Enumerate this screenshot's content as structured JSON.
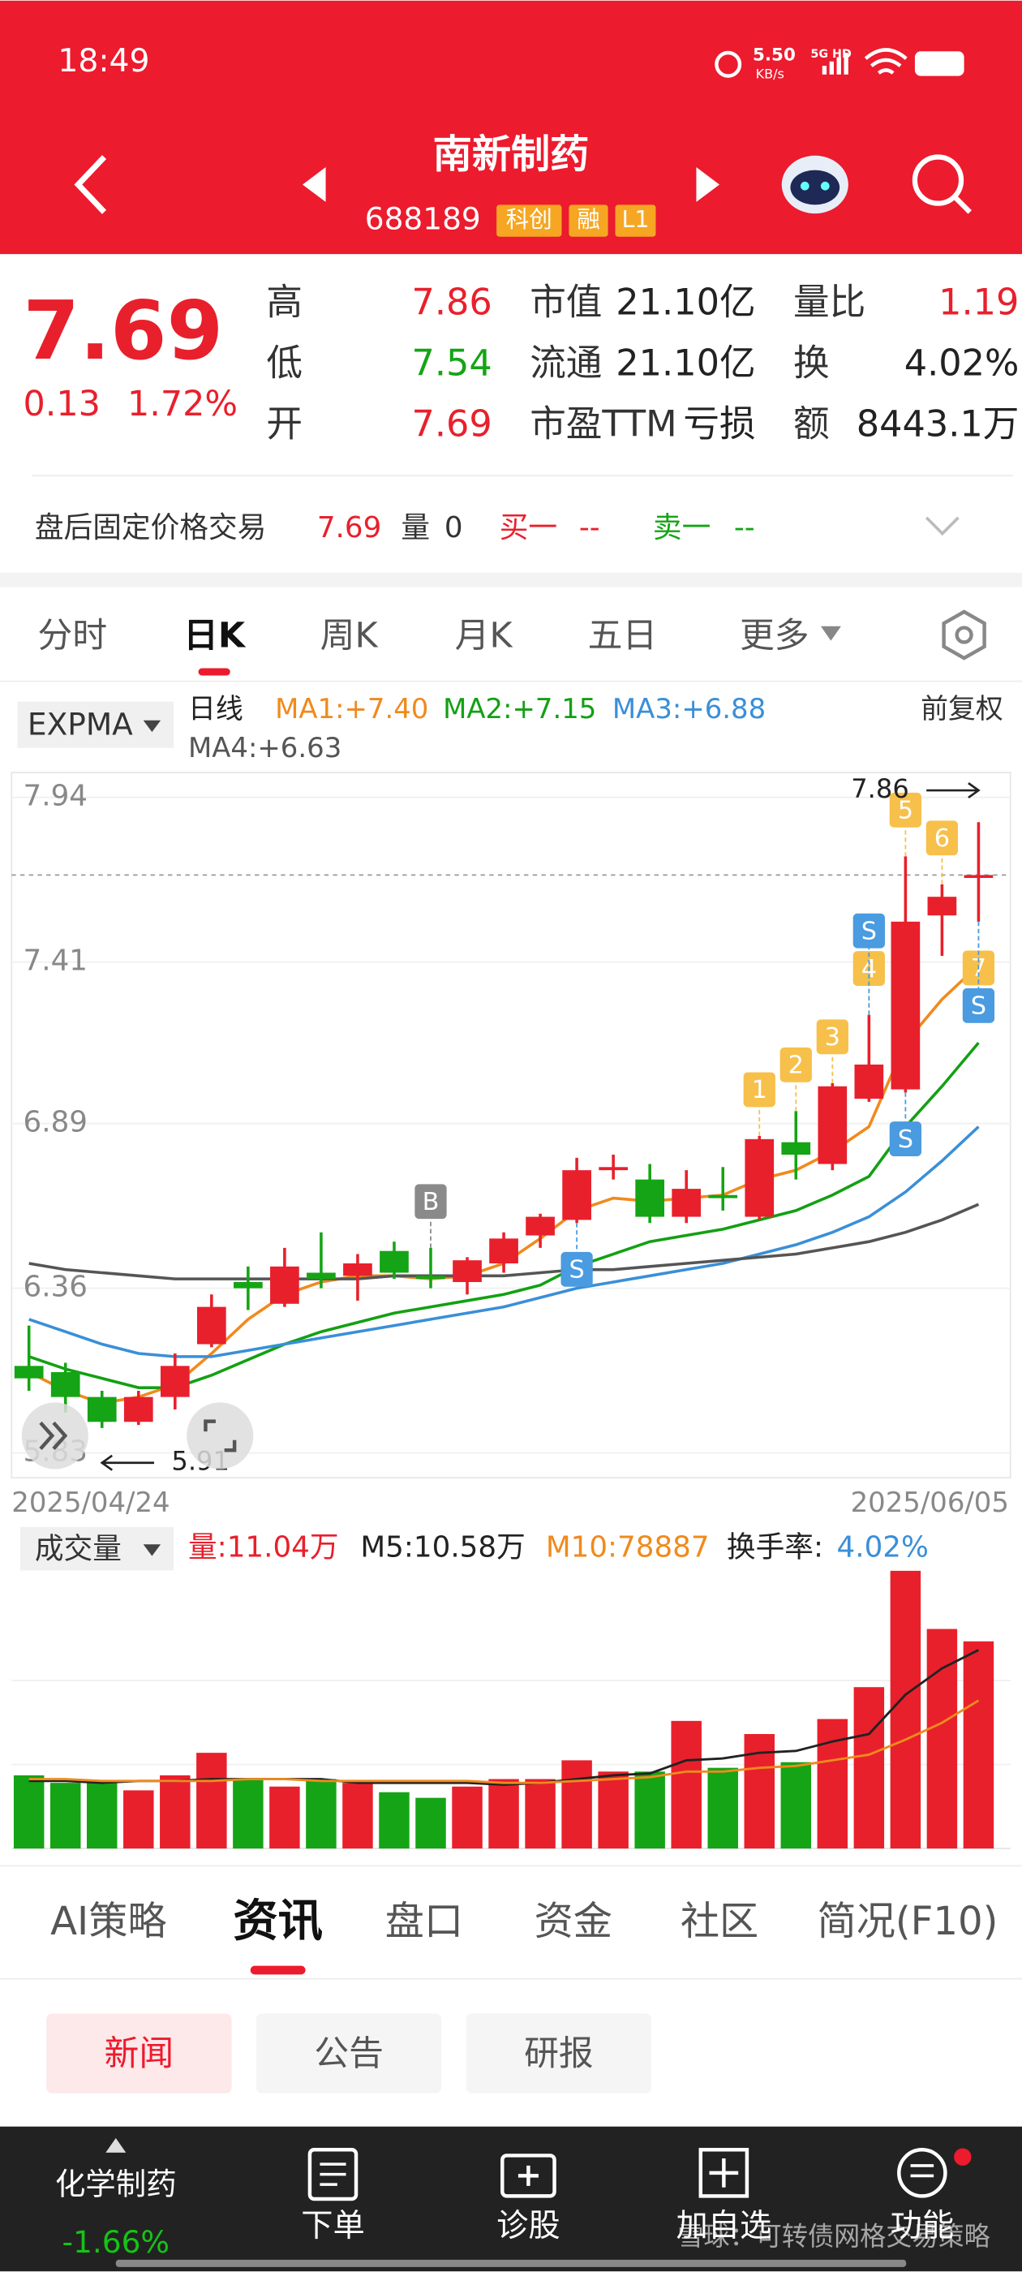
{
  "status_bar": {
    "time": "18:49",
    "speed": "5.50",
    "speed_unit": "KB/s",
    "network": "5G HD"
  },
  "header": {
    "name": "南新制药",
    "code": "688189",
    "tags": [
      "科创",
      "融",
      "L1"
    ]
  },
  "quote": {
    "price": "7.69",
    "change": "0.13",
    "change_pct": "1.72%",
    "stats": [
      {
        "label": "高",
        "value": "7.86",
        "color": "#e8202c"
      },
      {
        "label": "市值",
        "value": "21.10亿",
        "color": "#222222"
      },
      {
        "label": "量比",
        "value": "1.19",
        "color": "#e8202c"
      },
      {
        "label": "低",
        "value": "7.54",
        "color": "#15a415"
      },
      {
        "label": "流通",
        "value": "21.10亿",
        "color": "#222222"
      },
      {
        "label": "换",
        "value": "4.02%",
        "color": "#222222"
      },
      {
        "label": "开",
        "value": "7.69",
        "color": "#e8202c"
      },
      {
        "label": "市盈TTM",
        "value": "亏损",
        "color": "#222222"
      },
      {
        "label": "额",
        "value": "8443.1万",
        "color": "#222222"
      }
    ]
  },
  "after_hours": {
    "label": "盘后固定价格交易",
    "price": "7.69",
    "volume_label": "量",
    "volume": "0",
    "bid_label": "买一",
    "bid": "--",
    "ask_label": "卖一",
    "ask": "--"
  },
  "period_tabs": {
    "items": [
      "分时",
      "日K",
      "周K",
      "月K",
      "五日",
      "更多"
    ],
    "active": 1
  },
  "kline": {
    "indicator": "EXPMA",
    "period_label": "日线",
    "adjust": "前复权",
    "up_color": "#e8202c",
    "down_color": "#15a415",
    "ylim": [
      5.75,
      8.02
    ],
    "yticks": [
      7.94,
      7.41,
      6.89,
      6.36,
      5.83
    ],
    "x_start": "2025/04/24",
    "x_end": "2025/06/05",
    "last_close": 7.69,
    "high_mark": 7.86,
    "low_mark": 5.91,
    "open": [
      6.11,
      6.09,
      6.01,
      5.93,
      6.01,
      6.18,
      6.38,
      6.31,
      6.41,
      6.4,
      6.48,
      6.4,
      6.38,
      6.44,
      6.53,
      6.58,
      6.74,
      6.71,
      6.59,
      6.66,
      6.59,
      6.83,
      6.76,
      6.97,
      7.0,
      7.56,
      7.69
    ],
    "close": [
      6.07,
      6.01,
      5.93,
      6.01,
      6.11,
      6.3,
      6.36,
      6.43,
      6.39,
      6.44,
      6.41,
      6.39,
      6.45,
      6.52,
      6.59,
      6.74,
      6.75,
      6.59,
      6.68,
      6.65,
      6.84,
      6.79,
      7.01,
      7.08,
      7.54,
      7.62,
      7.69
    ],
    "high": [
      6.24,
      6.12,
      6.03,
      6.03,
      6.15,
      6.34,
      6.43,
      6.49,
      6.54,
      6.47,
      6.51,
      6.49,
      6.46,
      6.54,
      6.6,
      6.78,
      6.79,
      6.76,
      6.74,
      6.75,
      6.85,
      6.93,
      7.02,
      7.24,
      7.75,
      7.66,
      7.86
    ],
    "low": [
      6.03,
      5.96,
      5.91,
      5.92,
      5.97,
      6.17,
      6.29,
      6.3,
      6.36,
      6.32,
      6.39,
      6.36,
      6.34,
      6.41,
      6.49,
      6.57,
      6.71,
      6.57,
      6.57,
      6.61,
      6.58,
      6.71,
      6.74,
      6.96,
      6.99,
      7.43,
      7.54
    ],
    "ma": [
      {
        "label": "MA1:+7.40",
        "color": "#f08a1c",
        "values": [
          6.09,
          6.03,
          5.99,
          6.01,
          6.05,
          6.15,
          6.26,
          6.34,
          6.38,
          6.4,
          6.4,
          6.39,
          6.4,
          6.44,
          6.52,
          6.61,
          6.65,
          6.64,
          6.65,
          6.66,
          6.71,
          6.74,
          6.8,
          6.88,
          7.15,
          7.29,
          7.4
        ]
      },
      {
        "label": "MA2:+7.15",
        "color": "#13a013",
        "values": [
          6.14,
          6.1,
          6.07,
          6.04,
          6.04,
          6.08,
          6.13,
          6.18,
          6.22,
          6.25,
          6.28,
          6.3,
          6.32,
          6.34,
          6.37,
          6.43,
          6.47,
          6.51,
          6.53,
          6.55,
          6.58,
          6.61,
          6.66,
          6.72,
          6.88,
          7.01,
          7.15
        ]
      },
      {
        "label": "MA3:+6.88",
        "color": "#3a8fd8",
        "values": [
          6.26,
          6.22,
          6.18,
          6.15,
          6.14,
          6.14,
          6.16,
          6.18,
          6.2,
          6.22,
          6.24,
          6.26,
          6.28,
          6.3,
          6.33,
          6.36,
          6.38,
          6.4,
          6.42,
          6.44,
          6.47,
          6.5,
          6.54,
          6.59,
          6.67,
          6.77,
          6.88
        ]
      },
      {
        "label": "MA4:+6.63",
        "color": "#555555",
        "values": [
          6.44,
          6.42,
          6.41,
          6.4,
          6.39,
          6.39,
          6.39,
          6.39,
          6.39,
          6.39,
          6.4,
          6.4,
          6.4,
          6.4,
          6.41,
          6.42,
          6.42,
          6.43,
          6.44,
          6.45,
          6.46,
          6.47,
          6.49,
          6.51,
          6.54,
          6.58,
          6.63
        ]
      }
    ],
    "signals": [
      {
        "index": 11,
        "label": "B",
        "position": "above",
        "color": "#8a8a8a"
      },
      {
        "index": 15,
        "label": "S",
        "position": "below",
        "color": "#4a9be0"
      },
      {
        "index": 20,
        "label": "1",
        "position": "above",
        "color": "#f7c04a"
      },
      {
        "index": 21,
        "label": "2",
        "position": "above",
        "color": "#f7c04a"
      },
      {
        "index": 22,
        "label": "3",
        "position": "above",
        "color": "#f7c04a"
      },
      {
        "index": 23,
        "label": "4",
        "position": "above",
        "color": "#f7c04a"
      },
      {
        "index": 23,
        "label": "S",
        "position": "above",
        "color": "#4a9be0"
      },
      {
        "index": 24,
        "label": "5",
        "position": "above",
        "color": "#f7c04a"
      },
      {
        "index": 24,
        "label": "S",
        "position": "below",
        "color": "#4a9be0"
      },
      {
        "index": 25,
        "label": "6",
        "position": "above",
        "color": "#f7c04a"
      },
      {
        "index": 26,
        "label": "7",
        "position": "below",
        "color": "#f7c04a"
      },
      {
        "index": 26,
        "label": "S",
        "position": "below",
        "color": "#4a9be0"
      }
    ]
  },
  "volume": {
    "title": "成交量",
    "legend": [
      {
        "text": "量:11.04万",
        "color": "#e8202c"
      },
      {
        "text": "M5:10.58万",
        "color": "#222222"
      },
      {
        "text": "M10:78887",
        "color": "#f08a1c"
      },
      {
        "text": "换手率:",
        "color": "#222222"
      },
      {
        "text": "4.02%",
        "color": "#3a8fd8"
      }
    ],
    "ylim": [
      0,
      15.9
    ],
    "values": [
      3.9,
      3.5,
      3.5,
      3.1,
      3.9,
      5.1,
      3.7,
      3.3,
      3.7,
      3.5,
      3.0,
      2.7,
      3.3,
      3.7,
      3.7,
      4.7,
      4.1,
      4.1,
      6.8,
      4.3,
      6.1,
      4.6,
      6.9,
      8.6,
      14.8,
      11.7,
      11.04
    ],
    "m5": {
      "color": "#222222",
      "values": [
        3.6,
        3.6,
        3.5,
        3.6,
        3.6,
        3.7,
        3.7,
        3.7,
        3.7,
        3.5,
        3.5,
        3.5,
        3.5,
        3.4,
        3.5,
        3.7,
        3.9,
        4.0,
        4.7,
        4.8,
        5.1,
        5.2,
        5.7,
        6.1,
        8.2,
        9.6,
        10.58
      ]
    },
    "m10": {
      "color": "#f08a1c",
      "values": [
        3.7,
        3.7,
        3.6,
        3.6,
        3.6,
        3.6,
        3.7,
        3.7,
        3.6,
        3.6,
        3.6,
        3.6,
        3.6,
        3.5,
        3.5,
        3.6,
        3.7,
        3.8,
        4.1,
        4.1,
        4.3,
        4.4,
        4.7,
        5.0,
        5.8,
        6.7,
        7.8887
      ]
    }
  },
  "info_tabs": {
    "items": [
      "AI策略",
      "资讯",
      "盘口",
      "资金",
      "社区",
      "简况(F10)"
    ],
    "active": 1
  },
  "news_tabs": {
    "items": [
      "新闻",
      "公告",
      "研报"
    ],
    "active": 0
  },
  "bottom_bar": {
    "sector": "化学制药",
    "sector_change": "-1.66%",
    "items": [
      "下单",
      "诊股",
      "加自选",
      "功能"
    ]
  },
  "watermark": "雪球：可转债网格交易策略"
}
